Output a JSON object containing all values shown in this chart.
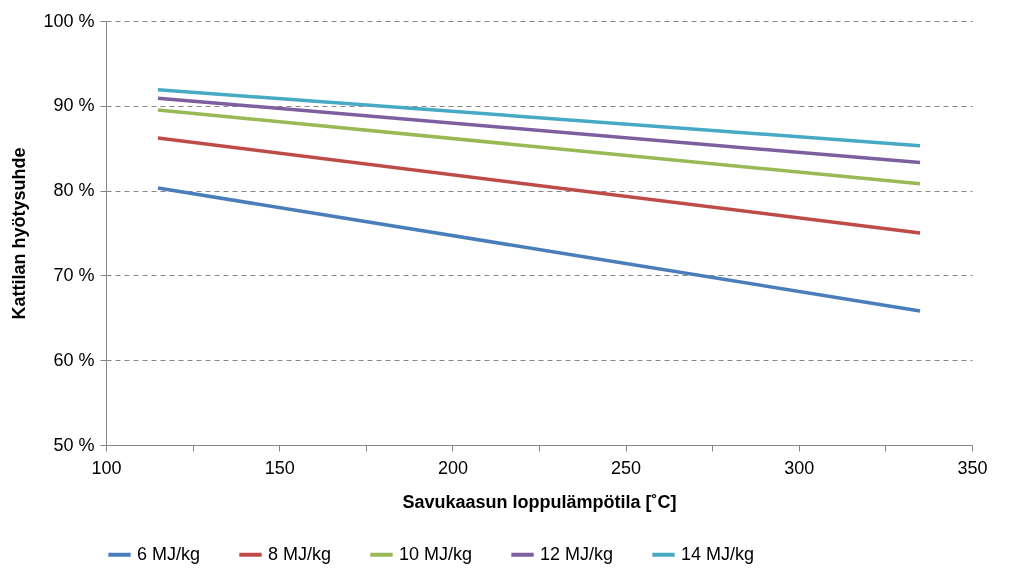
{
  "chart_data": {
    "type": "line",
    "xlabel": "Savukaasun loppulämpötila [˚C]",
    "ylabel": "Kattilan hyötysuhde",
    "x": [
      115,
      335
    ],
    "series": [
      {
        "name": "6 MJ/kg",
        "color": "#4a7ebb",
        "values": [
          80.3,
          65.8
        ]
      },
      {
        "name": "8 MJ/kg",
        "color": "#be4b48",
        "values": [
          86.2,
          75.0
        ]
      },
      {
        "name": "10 MJ/kg",
        "color": "#98b954",
        "values": [
          89.5,
          80.8
        ]
      },
      {
        "name": "12 MJ/kg",
        "color": "#7d5fa0",
        "values": [
          90.9,
          83.3
        ]
      },
      {
        "name": "14 MJ/kg",
        "color": "#46aac5",
        "values": [
          91.9,
          85.3
        ]
      }
    ],
    "xlim": [
      100,
      350
    ],
    "xticks": [
      100,
      {
        "value": 125,
        "label": null
      },
      150,
      {
        "value": 175,
        "label": null
      },
      200,
      {
        "value": 225,
        "label": null
      },
      250,
      {
        "value": 275,
        "label": null
      },
      300,
      {
        "value": 325,
        "label": null
      },
      350
    ],
    "ylim": [
      50,
      100
    ],
    "yticks": [
      {
        "value": 50,
        "label": "50 %"
      },
      {
        "value": 60,
        "label": "60 %"
      },
      {
        "value": 70,
        "label": "70 %"
      },
      {
        "value": 80,
        "label": "80 %"
      },
      {
        "value": 90,
        "label": "90 %"
      },
      {
        "value": 100,
        "label": "100 %"
      }
    ],
    "grid": "y",
    "legend": "bottom",
    "marker": "none",
    "line_style": "solid"
  }
}
